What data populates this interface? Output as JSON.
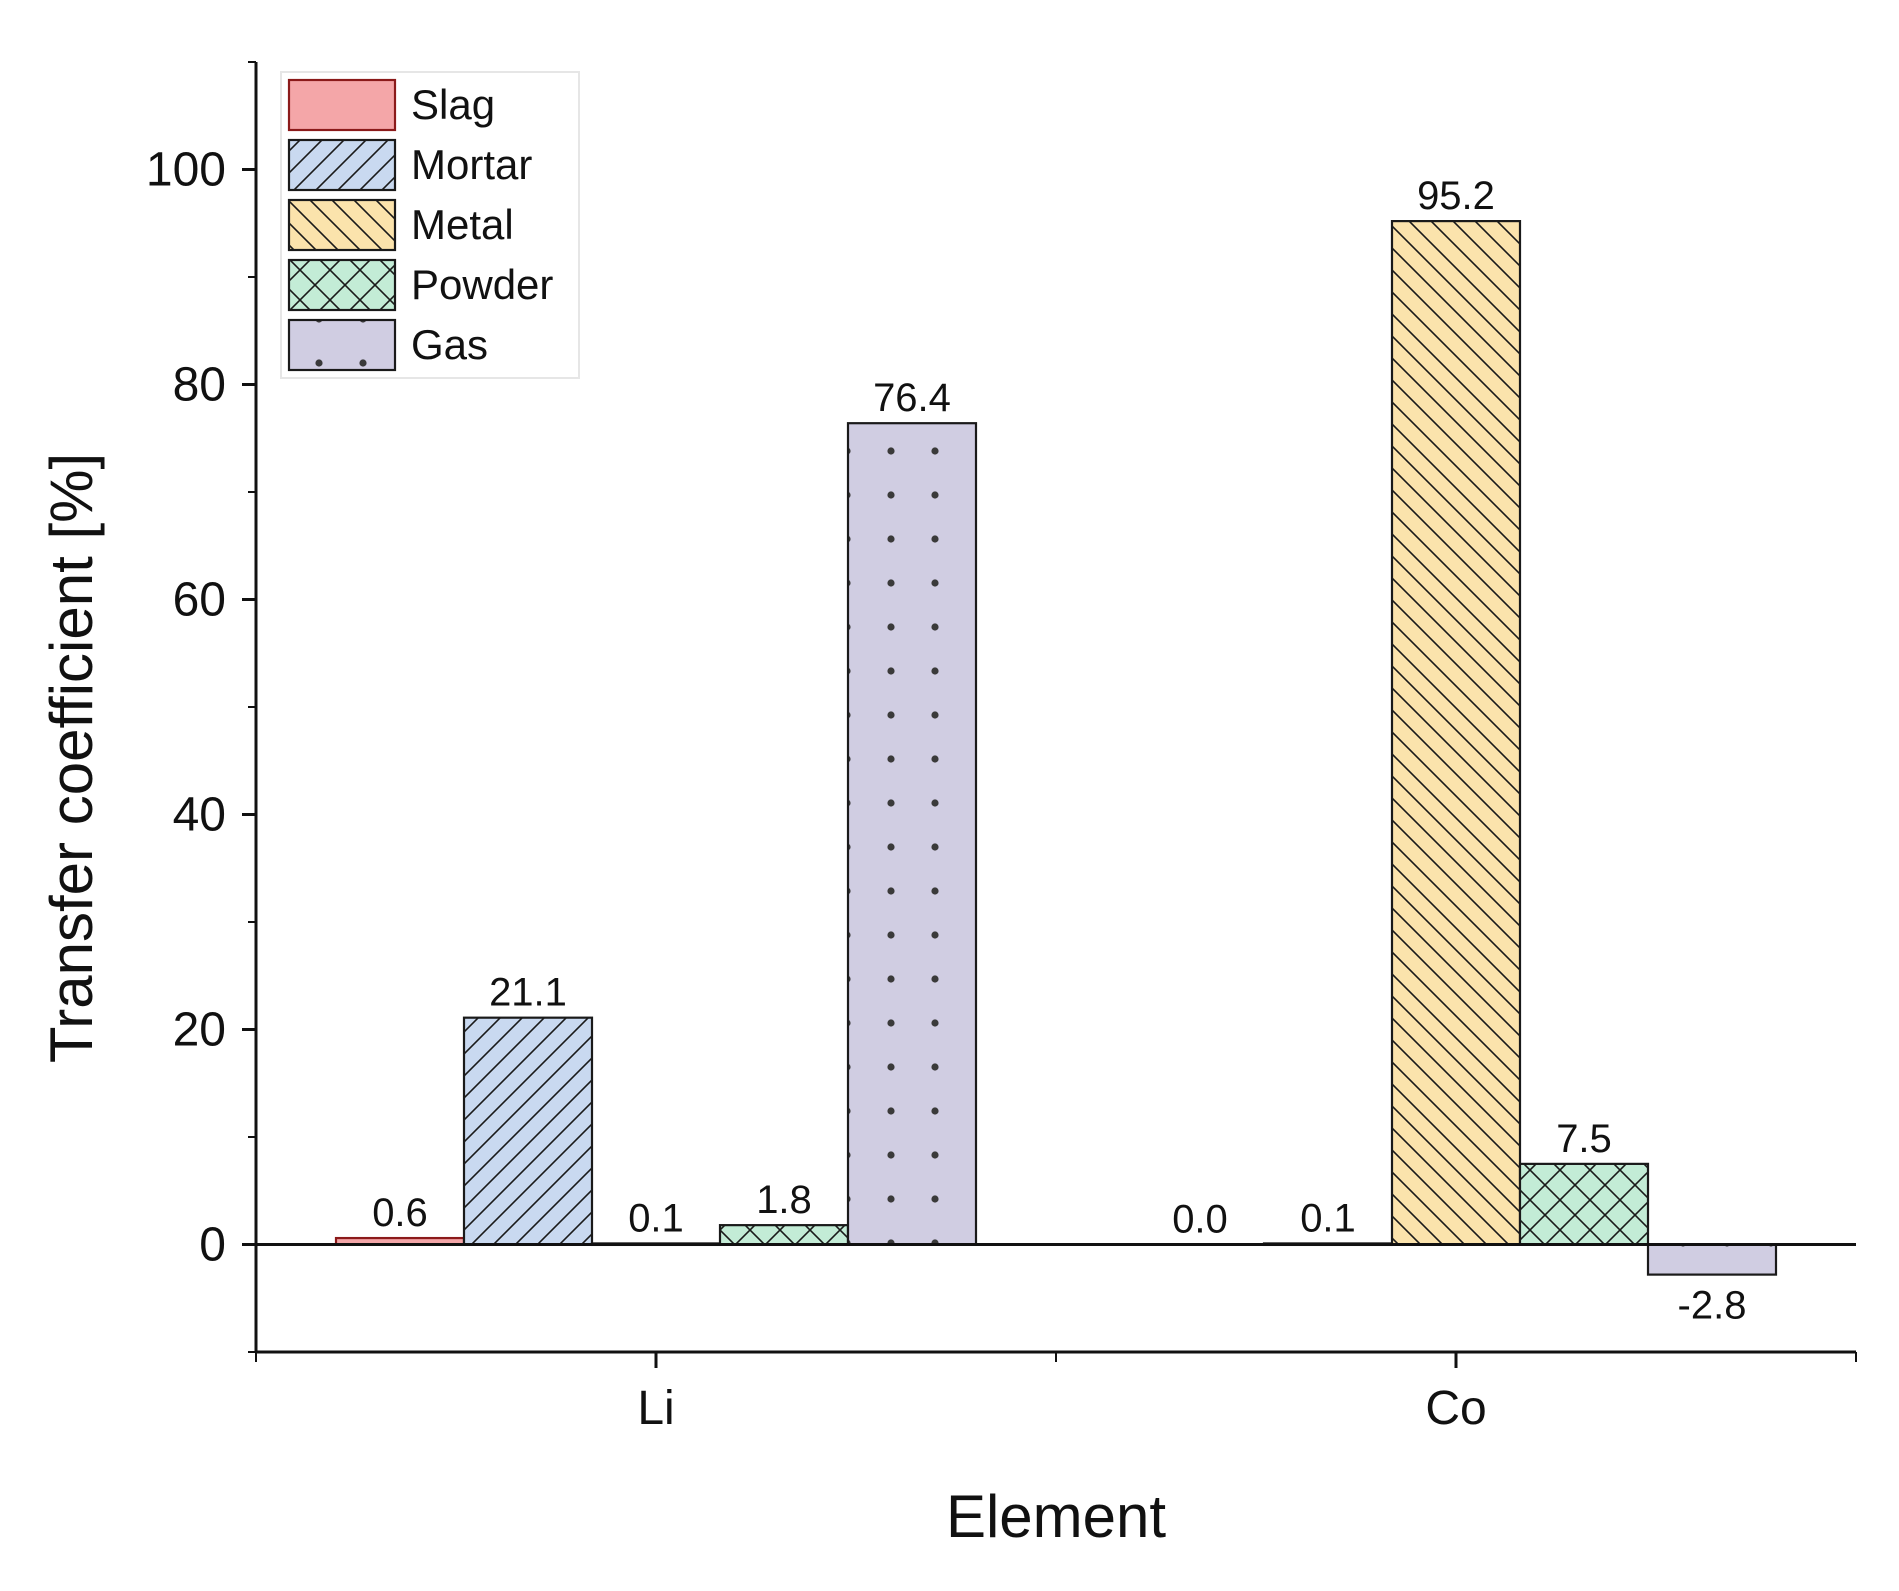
{
  "chart_data": {
    "type": "bar",
    "xlabel": "Element",
    "ylabel": "Transfer coefficient [%]",
    "ylim": [
      -10,
      110
    ],
    "yticks": [
      0,
      20,
      40,
      60,
      80,
      100
    ],
    "grid": false,
    "legend_position": "top-left",
    "categories": [
      "Li",
      "Co"
    ],
    "series": [
      {
        "name": "Slag",
        "values": [
          0.6,
          0.0
        ],
        "labels": [
          "0.6",
          "0.0"
        ],
        "color": "#f4a6a8",
        "edge": "#8b1a1a",
        "pattern": "solid"
      },
      {
        "name": "Mortar",
        "values": [
          21.1,
          0.1
        ],
        "labels": [
          "21.1",
          "0.1"
        ],
        "color": "#c9d9f0",
        "edge": "#1a1a1a",
        "pattern": "forward-diagonal"
      },
      {
        "name": "Metal",
        "values": [
          0.1,
          95.2
        ],
        "labels": [
          "0.1",
          "95.2"
        ],
        "color": "#fbe3ac",
        "edge": "#1a1a1a",
        "pattern": "backward-diagonal"
      },
      {
        "name": "Powder",
        "values": [
          1.8,
          7.5
        ],
        "labels": [
          "1.8",
          "7.5"
        ],
        "color": "#c3ecd6",
        "edge": "#1a1a1a",
        "pattern": "crosshatch"
      },
      {
        "name": "Gas",
        "values": [
          76.4,
          -2.8
        ],
        "labels": [
          "76.4",
          "-2.8"
        ],
        "color": "#d0cde2",
        "edge": "#1a1a1a",
        "pattern": "dots"
      }
    ]
  }
}
